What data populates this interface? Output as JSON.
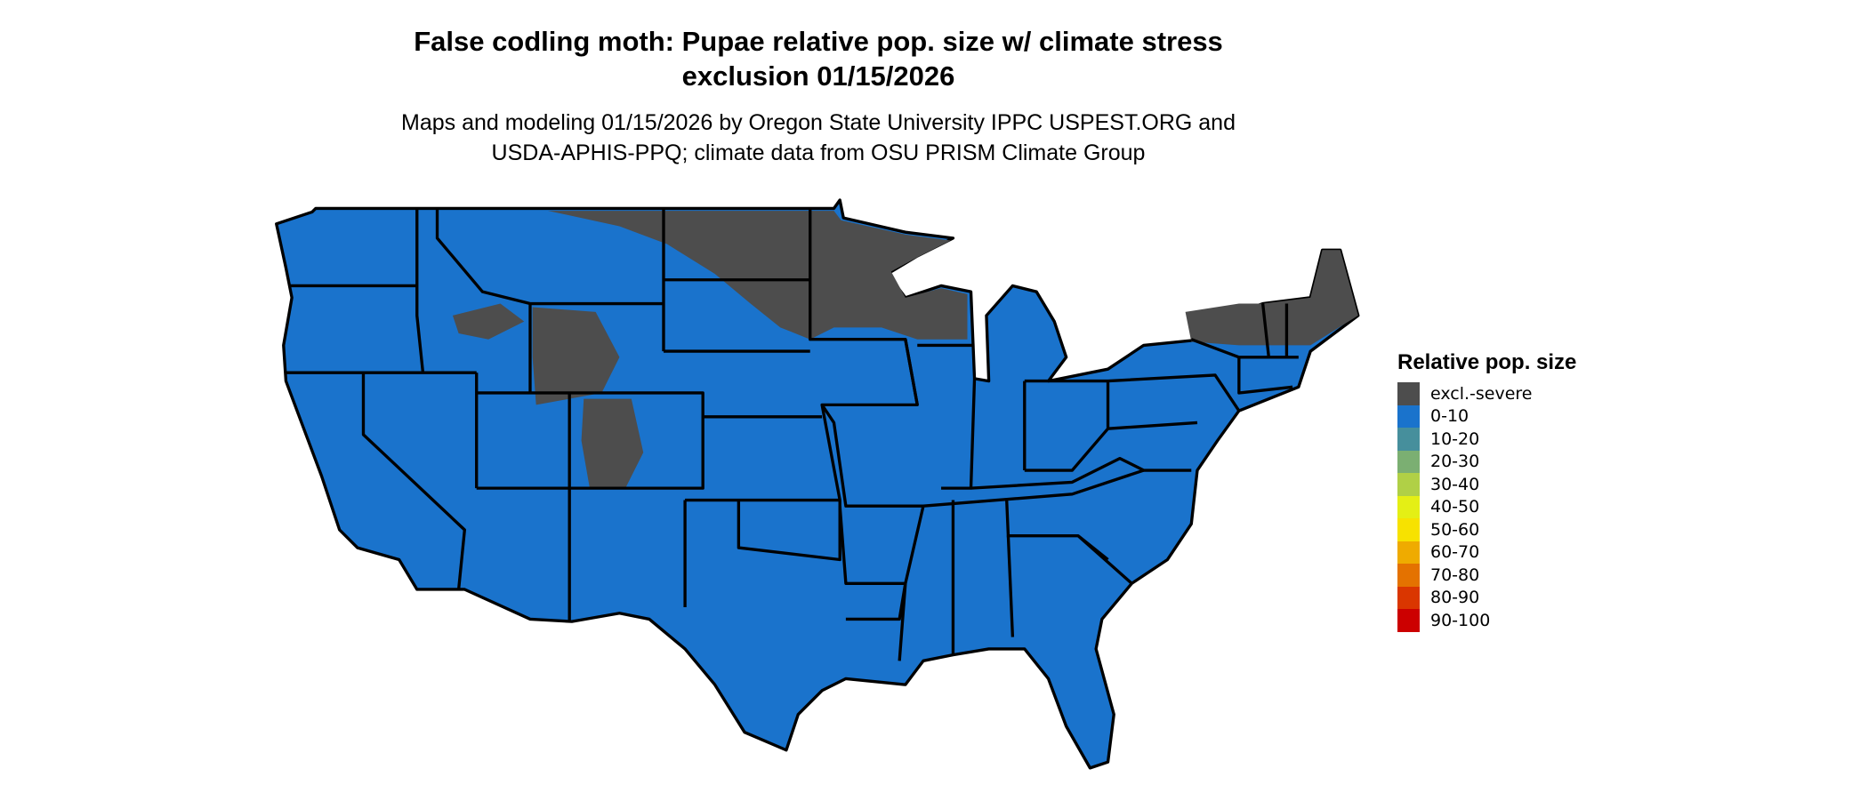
{
  "title": [
    "False codling moth: Pupae relative pop. size w/ climate stress",
    "exclusion 01/15/2026"
  ],
  "subtitle": [
    "Maps and modeling 01/15/2026 by Oregon State University IPPC USPEST.ORG and",
    "USDA-APHIS-PPQ; climate data from OSU PRISM Climate Group"
  ],
  "legend": {
    "title": "Relative pop. size",
    "items": [
      {
        "label": "excl.-severe",
        "color": "#4d4d4d"
      },
      {
        "label": "0-10",
        "color": "#1a73cc"
      },
      {
        "label": "10-20",
        "color": "#468f9c"
      },
      {
        "label": "20-30",
        "color": "#7baf72"
      },
      {
        "label": "30-40",
        "color": "#b0d046"
      },
      {
        "label": "40-50",
        "color": "#e4ef15"
      },
      {
        "label": "50-60",
        "color": "#f7e200"
      },
      {
        "label": "60-70",
        "color": "#efab00"
      },
      {
        "label": "70-80",
        "color": "#e47200"
      },
      {
        "label": "80-90",
        "color": "#da3600"
      },
      {
        "label": "90-100",
        "color": "#cc0000"
      }
    ]
  },
  "map": {
    "base_color": "#1a73cc",
    "excluded_color": "#4d4d4d",
    "border_color": "#000000"
  }
}
